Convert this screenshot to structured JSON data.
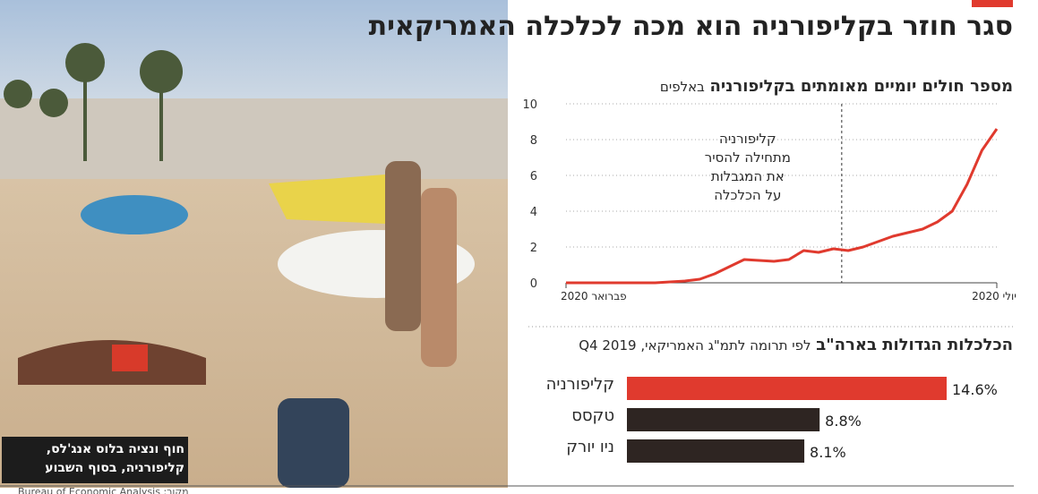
{
  "header": {
    "title": "סגר חוזר בקליפורניה הוא מכה לכלכלה האמריקאית"
  },
  "photo": {
    "caption": [
      "חוף ונציה בלוס אנג'לס,",
      "קליפורניה, בסוף השבוע"
    ]
  },
  "chart_data": [
    {
      "type": "line",
      "title": "מספר חולים יומיים מאומתים בקליפורניה",
      "subtitle": "באלפים",
      "categories": [
        "פברואר 2020",
        null,
        null,
        null,
        null,
        null,
        null,
        null,
        null,
        null,
        null,
        null,
        null,
        null,
        null,
        null,
        null,
        null,
        null,
        null,
        null,
        null,
        null,
        null,
        null,
        null,
        null,
        null,
        null,
        "יולי 2020"
      ],
      "values": [
        0,
        0,
        0,
        0,
        0,
        0,
        0,
        0.05,
        0.1,
        0.2,
        0.5,
        0.9,
        1.3,
        1.25,
        1.2,
        1.3,
        1.8,
        1.7,
        1.9,
        1.8,
        2.0,
        2.3,
        2.6,
        2.8,
        3.0,
        3.4,
        4.0,
        5.5,
        7.4,
        8.6
      ],
      "color": "#e03a2e",
      "ylim": [
        0,
        10
      ],
      "yticks": [
        0,
        2,
        4,
        6,
        8,
        10
      ],
      "grid": true,
      "annotation": [
        "קליפורניה",
        "מתחילה להסיר",
        "את המגבלות",
        "על הכלכלה"
      ]
    },
    {
      "type": "hbar",
      "title": "הכלכלות הגדולות בארה\"ב",
      "subtitle": "לפי תרומה לתמ\"ג האמריקאי, Q4 2019",
      "categories": [
        "קליפורניה",
        "טקסס",
        "ניו יורק"
      ],
      "values": [
        14.6,
        8.8,
        8.1
      ],
      "value_labels": [
        "14.6%",
        "8.8%",
        "8.1%"
      ],
      "colors": [
        "#e03a2e",
        "#2e2522",
        "#2e2522"
      ]
    }
  ],
  "source": "מקור: Bureau of Economic Analysis"
}
